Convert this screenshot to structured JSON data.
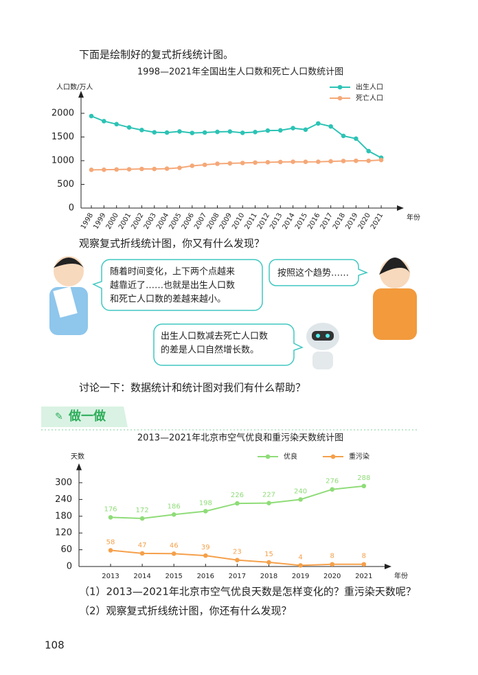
{
  "intro": "下面是绘制好的复式折线统计图。",
  "chart_data": [
    {
      "type": "line",
      "title": "1998—2021年全国出生人口数和死亡人口数统计图",
      "y_label": "人口数/万人",
      "x_label": "年份",
      "categories": [
        "1998",
        "1999",
        "2000",
        "2001",
        "2002",
        "2003",
        "2004",
        "2005",
        "2006",
        "2007",
        "2008",
        "2009",
        "2010",
        "2011",
        "2012",
        "2013",
        "2014",
        "2015",
        "2016",
        "2017",
        "2018",
        "2019",
        "2020",
        "2021"
      ],
      "series": [
        {
          "name": "出生人口",
          "color": "#2cc3b5",
          "values": [
            1942,
            1834,
            1771,
            1702,
            1647,
            1599,
            1593,
            1617,
            1585,
            1594,
            1608,
            1615,
            1588,
            1604,
            1635,
            1640,
            1687,
            1655,
            1786,
            1723,
            1523,
            1465,
            1202,
            1062
          ]
        },
        {
          "name": "死亡人口",
          "color": "#f5a878",
          "values": [
            807,
            809,
            814,
            818,
            826,
            825,
            832,
            849,
            892,
            913,
            935,
            943,
            951,
            960,
            966,
            972,
            977,
            975,
            977,
            986,
            993,
            998,
            998,
            1014
          ]
        }
      ],
      "ylim": [
        0,
        2300
      ],
      "yticks": [
        0,
        500,
        1000,
        1500,
        2000
      ],
      "legend": "upper right"
    },
    {
      "type": "line",
      "title": "2013—2021年北京市空气优良和重污染天数统计图",
      "y_label": "天数",
      "x_label": "年份",
      "categories": [
        "2013",
        "2014",
        "2015",
        "2016",
        "2017",
        "2018",
        "2019",
        "2020",
        "2021"
      ],
      "series": [
        {
          "name": "优良",
          "color": "#8fdc78",
          "values": [
            176,
            172,
            186,
            198,
            226,
            227,
            240,
            276,
            288
          ]
        },
        {
          "name": "重污染",
          "color": "#f5a04a",
          "values": [
            58,
            47,
            46,
            39,
            23,
            15,
            4,
            8,
            8
          ]
        }
      ],
      "ylim": [
        0,
        340
      ],
      "yticks": [
        0,
        60,
        120,
        180,
        240,
        300
      ],
      "legend": "upper right",
      "data_labels": true
    }
  ],
  "question": "观察复式折线统计图，你又有什么发现？",
  "bubbles": [
    [
      "随着时间变化，上下两个点越来",
      "越靠近了……也就是出生人口数",
      "和死亡人口数的差越来越小。"
    ],
    [
      "按照这个趋势……"
    ],
    [
      "出生人口数减去死亡人口数",
      "的差是人口自然增长数。"
    ]
  ],
  "discuss": "讨论一下：数据统计和统计图对我们有什么帮助？",
  "section": "做一做",
  "tasks": [
    "（1）2013—2021年北京市空气优良天数是怎样变化的？重污染天数呢？",
    "（2）观察复式折线统计图，你还有什么发现？"
  ],
  "page_number": "108"
}
